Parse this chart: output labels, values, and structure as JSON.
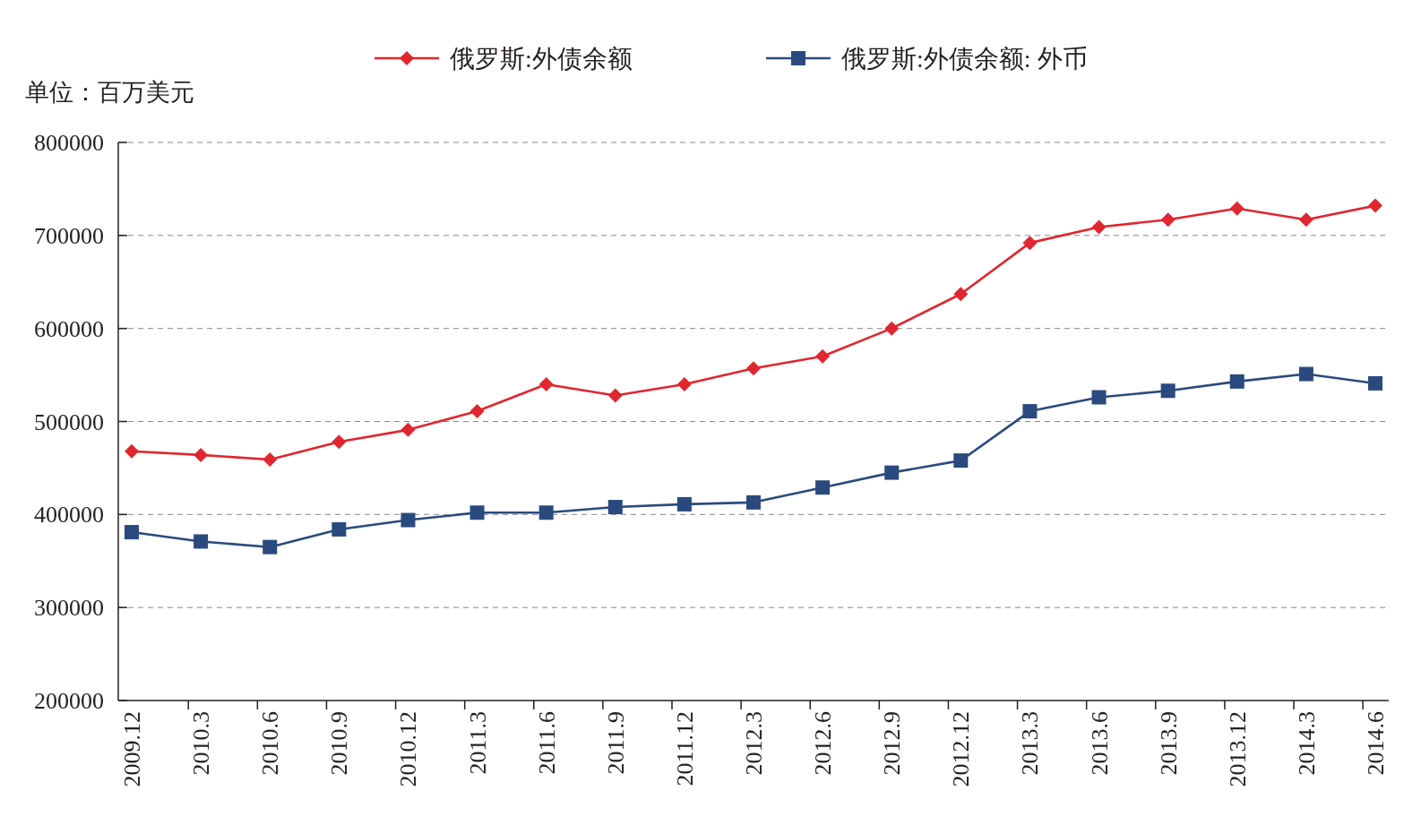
{
  "chart_data": {
    "type": "line",
    "annotations": [
      "单位：百万美元"
    ],
    "categories": [
      "2009.12",
      "2010.3",
      "2010.6",
      "2010.9",
      "2010.12",
      "2011.3",
      "2011.6",
      "2011.9",
      "2011.12",
      "2012.3",
      "2012.6",
      "2012.9",
      "2012.12",
      "2013.3",
      "2013.6",
      "2013.9",
      "2013.12",
      "2014.3",
      "2014.6"
    ],
    "series": [
      {
        "name": "俄罗斯:外债余额",
        "color": "#e0262f",
        "marker": "diamond",
        "values": [
          468000,
          464000,
          459000,
          478000,
          491000,
          511000,
          540000,
          528000,
          540000,
          557000,
          570000,
          600000,
          637000,
          692000,
          709000,
          717000,
          729000,
          717000,
          732000
        ]
      },
      {
        "name": "俄罗斯:外债余额: 外币",
        "color": "#2a4a7f",
        "marker": "square",
        "values": [
          381000,
          371000,
          365000,
          384000,
          394000,
          402000,
          402000,
          408000,
          411000,
          413000,
          429000,
          445000,
          458000,
          511000,
          526000,
          533000,
          543000,
          551000,
          541000
        ]
      }
    ],
    "ylim": [
      200000,
      800000
    ],
    "yticks": [
      200000,
      300000,
      400000,
      500000,
      600000,
      700000,
      800000
    ],
    "grid": "y",
    "legend": "top",
    "line_style": "solid"
  }
}
